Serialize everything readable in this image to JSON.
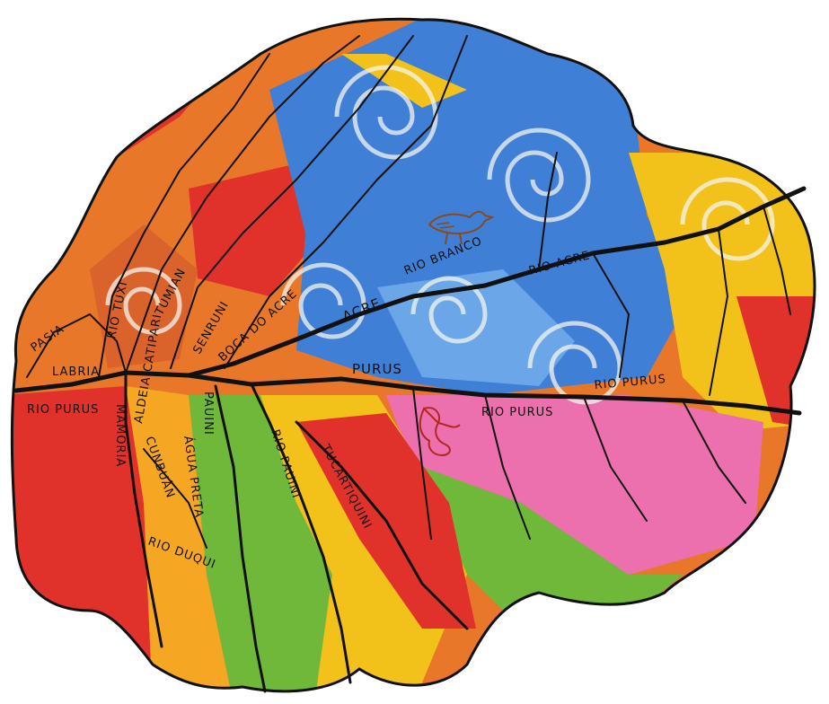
{
  "map": {
    "labels": {
      "pasia": "PASIA",
      "labria": "LABRIA",
      "rio_tuxi": "RIO TUXI",
      "tumian": "TUMIAN",
      "senruni": "SENRUNI",
      "boca_do_acre": "BOCA DO ACRE",
      "acre": "ACRE",
      "rio_branco": "RIO BRANCO",
      "rio_acre": "RIO ACRE",
      "purus": "PURUS",
      "rio_purus_right": "RIO PURUS",
      "rio_purus_center": "RIO PURUS",
      "rio_purus_left": "RIO PURUS",
      "mamoria": "MAMORIA",
      "aldeia_catipari": "ALDEIA CATIPARI",
      "pauini_small": "PAUINI",
      "rio_pauini": "RIO PAUINI",
      "tucartiquini": "TUCARTIQUINI",
      "cunbuan": "CUNBUÃN",
      "agua_preta": "ÁGUA PRETA",
      "rio_duqui": "RIO DUQUI"
    },
    "icons": {
      "bird": "bird-icon",
      "figure": "seated-figure-icon"
    },
    "colors": {
      "red": "#e0322a",
      "orange": "#e8772a",
      "yellow": "#f2c21a",
      "blue": "#3f7fd6",
      "light_blue": "#6aa6e8",
      "pink": "#ec6fae",
      "green": "#6fb83a",
      "brown": "#b5652d",
      "river": "#111111"
    }
  }
}
